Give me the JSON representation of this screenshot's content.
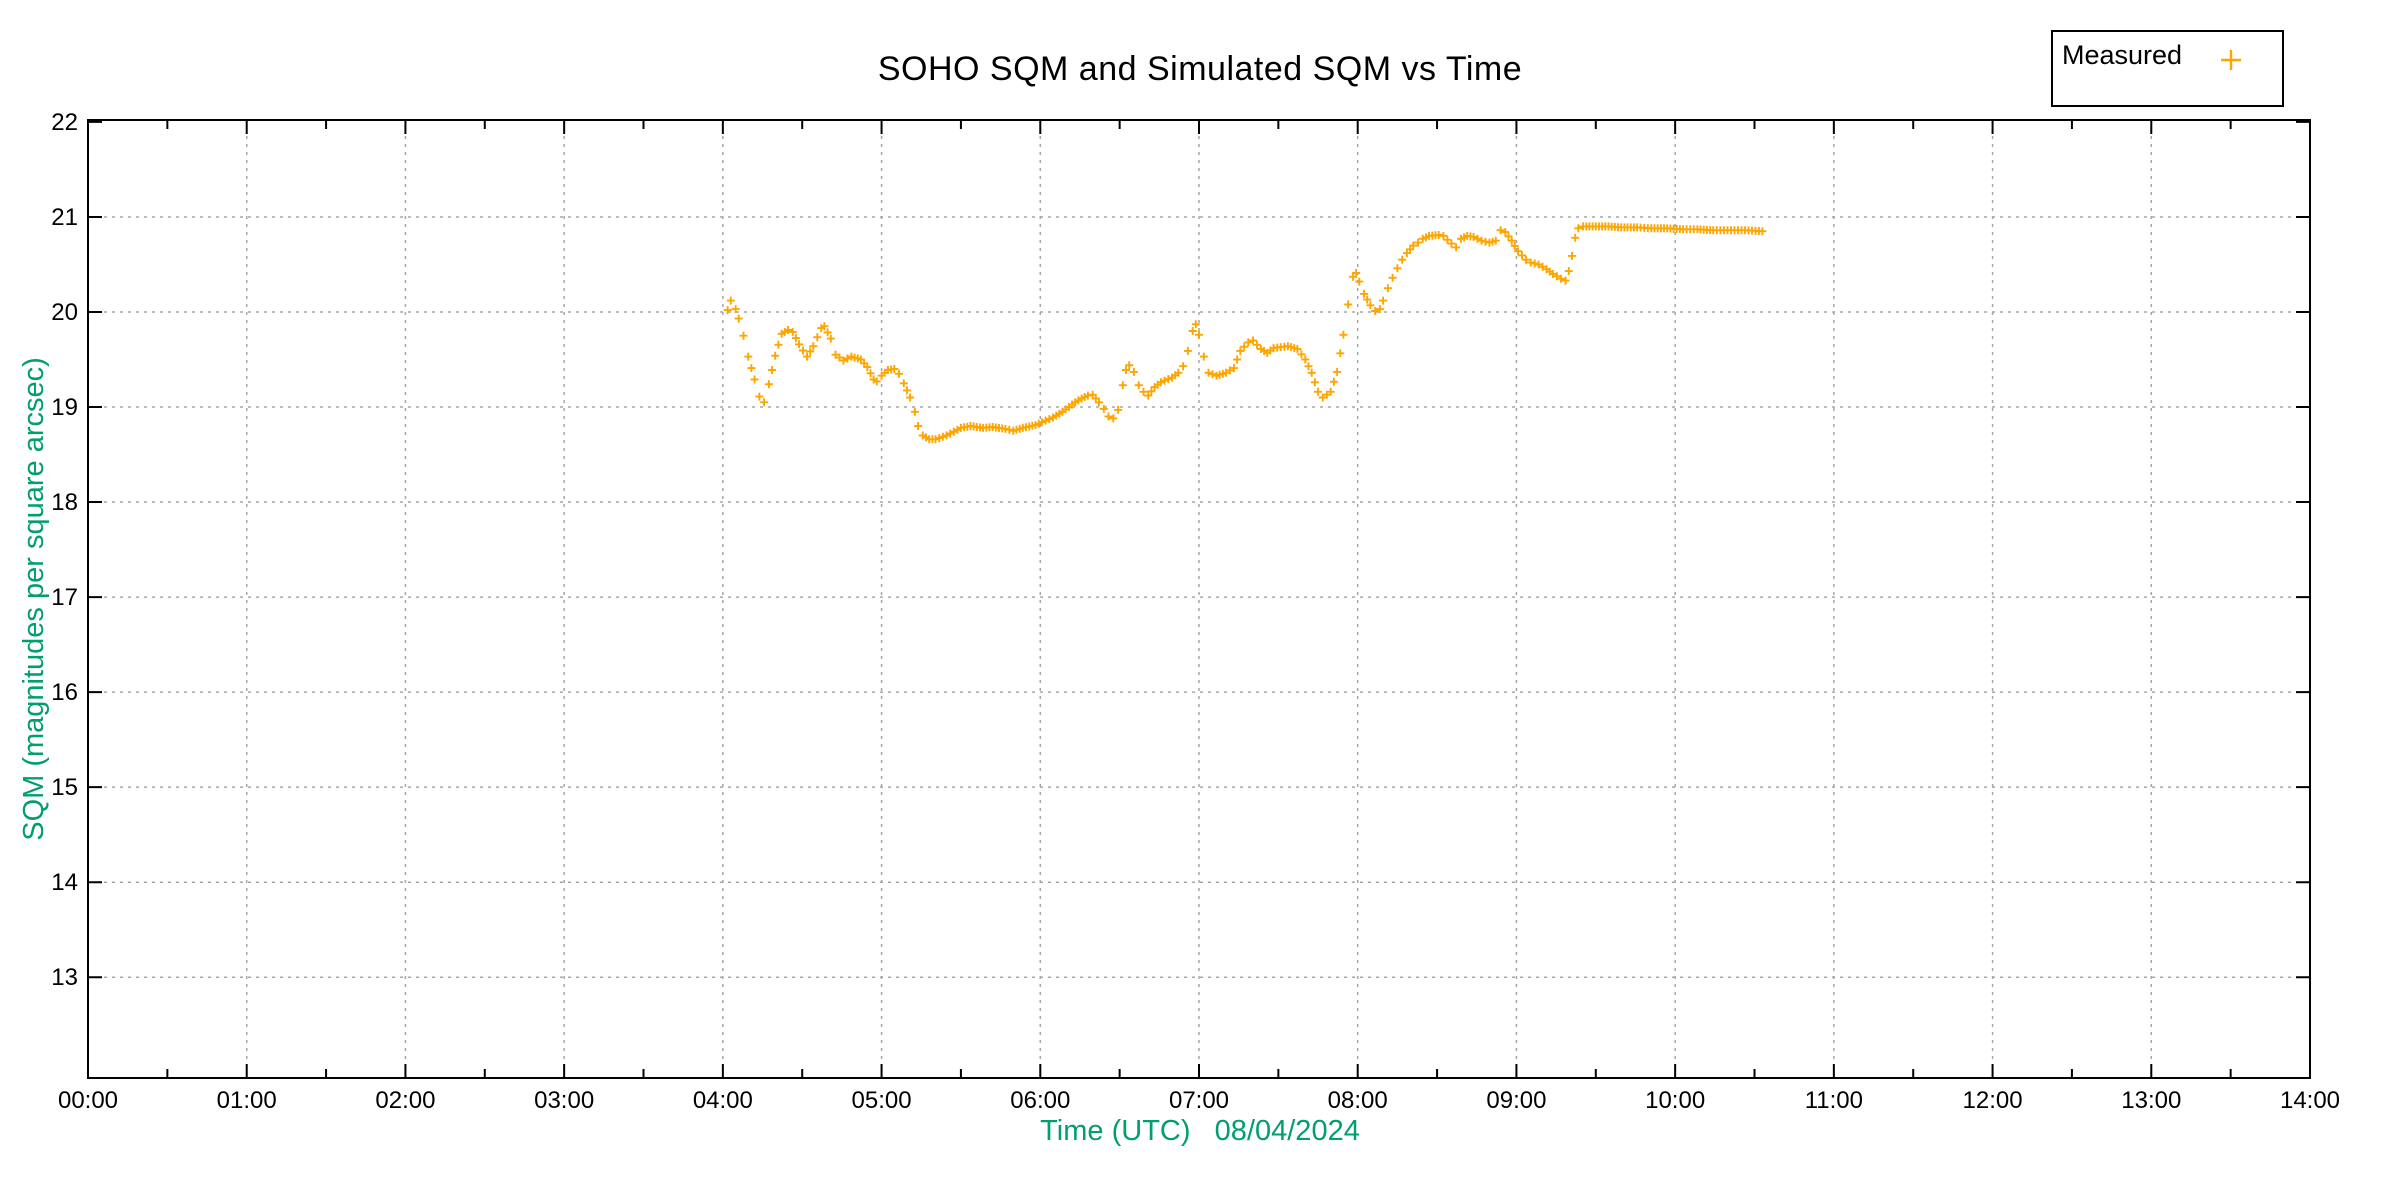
{
  "colors": {
    "marker_orange": "#FFA500",
    "label_green": "#019e6e",
    "grid_gray": "#a6a6a6",
    "axis_black": "#000000",
    "background": "#ffffff"
  },
  "legend": {
    "entries": [
      {
        "label": "Measured",
        "marker": "plus-marker",
        "color": "#FFA500"
      }
    ]
  },
  "chart_data": {
    "type": "scatter",
    "title": "SOHO SQM and Simulated SQM vs Time",
    "xlabel": "Time (UTC)   08/04/2024",
    "ylabel": "SQM (magnitudes per square arcsec)",
    "x_tick_labels": [
      "00:00",
      "01:00",
      "02:00",
      "03:00",
      "04:00",
      "05:00",
      "06:00",
      "07:00",
      "08:00",
      "09:00",
      "10:00",
      "11:00",
      "12:00",
      "13:00",
      "14:00"
    ],
    "x_tick_hours": [
      0,
      1,
      2,
      3,
      4,
      5,
      6,
      7,
      8,
      9,
      10,
      11,
      12,
      13,
      14
    ],
    "y_tick_values": [
      13,
      14,
      15,
      16,
      17,
      18,
      19,
      20,
      21,
      22
    ],
    "xlim_hours": [
      0,
      14
    ],
    "ylim": [
      11.94,
      22.02
    ],
    "grid": true,
    "legend_position": "top-right-outside",
    "marker_style": "+",
    "series": [
      {
        "name": "Measured",
        "color": "#FFA500",
        "points": [
          [
            4.03,
            20.02
          ],
          [
            4.05,
            20.12
          ],
          [
            4.08,
            20.03
          ],
          [
            4.1,
            19.93
          ],
          [
            4.13,
            19.75
          ],
          [
            4.16,
            19.53
          ],
          [
            4.2,
            19.29
          ],
          [
            4.23,
            19.11
          ],
          [
            4.26,
            19.05
          ],
          [
            4.29,
            19.24
          ],
          [
            4.33,
            19.54
          ],
          [
            4.37,
            19.77
          ],
          [
            4.41,
            19.81
          ],
          [
            4.44,
            19.79
          ],
          [
            4.48,
            19.66
          ],
          [
            4.53,
            19.53
          ],
          [
            4.57,
            19.64
          ],
          [
            4.62,
            19.83
          ],
          [
            4.64,
            19.85
          ],
          [
            4.68,
            19.72
          ],
          [
            4.71,
            19.55
          ],
          [
            4.76,
            19.49
          ],
          [
            4.81,
            19.53
          ],
          [
            4.87,
            19.5
          ],
          [
            4.91,
            19.42
          ],
          [
            4.95,
            19.29
          ],
          [
            4.97,
            19.27
          ],
          [
            5.0,
            19.33
          ],
          [
            5.04,
            19.39
          ],
          [
            5.08,
            19.4
          ],
          [
            5.11,
            19.35
          ],
          [
            5.14,
            19.25
          ],
          [
            5.18,
            19.1
          ],
          [
            5.21,
            18.95
          ],
          [
            5.23,
            18.8
          ],
          [
            5.26,
            18.7
          ],
          [
            5.3,
            18.66
          ],
          [
            5.34,
            18.66
          ],
          [
            5.41,
            18.7
          ],
          [
            5.5,
            18.78
          ],
          [
            5.56,
            18.8
          ],
          [
            5.64,
            18.78
          ],
          [
            5.7,
            18.79
          ],
          [
            5.78,
            18.77
          ],
          [
            5.83,
            18.75
          ],
          [
            5.89,
            18.78
          ],
          [
            5.97,
            18.81
          ],
          [
            6.01,
            18.84
          ],
          [
            6.08,
            18.89
          ],
          [
            6.14,
            18.95
          ],
          [
            6.18,
            19.0
          ],
          [
            6.22,
            19.05
          ],
          [
            6.26,
            19.09
          ],
          [
            6.3,
            19.12
          ],
          [
            6.33,
            19.13
          ],
          [
            6.37,
            19.05
          ],
          [
            6.4,
            18.98
          ],
          [
            6.43,
            18.9
          ],
          [
            6.46,
            18.88
          ],
          [
            6.49,
            18.97
          ],
          [
            6.52,
            19.23
          ],
          [
            6.54,
            19.39
          ],
          [
            6.56,
            19.44
          ],
          [
            6.59,
            19.37
          ],
          [
            6.62,
            19.23
          ],
          [
            6.65,
            19.16
          ],
          [
            6.68,
            19.12
          ],
          [
            6.72,
            19.21
          ],
          [
            6.76,
            19.26
          ],
          [
            6.83,
            19.31
          ],
          [
            6.87,
            19.36
          ],
          [
            6.9,
            19.43
          ],
          [
            6.93,
            19.59
          ],
          [
            6.96,
            19.8
          ],
          [
            6.98,
            19.87
          ],
          [
            7.0,
            19.76
          ],
          [
            7.03,
            19.53
          ],
          [
            7.06,
            19.36
          ],
          [
            7.11,
            19.33
          ],
          [
            7.17,
            19.36
          ],
          [
            7.22,
            19.41
          ],
          [
            7.26,
            19.59
          ],
          [
            7.31,
            19.68
          ],
          [
            7.34,
            19.7
          ],
          [
            7.39,
            19.61
          ],
          [
            7.43,
            19.57
          ],
          [
            7.47,
            19.62
          ],
          [
            7.56,
            19.64
          ],
          [
            7.62,
            19.61
          ],
          [
            7.67,
            19.5
          ],
          [
            7.71,
            19.36
          ],
          [
            7.75,
            19.16
          ],
          [
            7.78,
            19.1
          ],
          [
            7.83,
            19.16
          ],
          [
            7.87,
            19.37
          ],
          [
            7.91,
            19.76
          ],
          [
            7.94,
            20.08
          ],
          [
            7.97,
            20.37
          ],
          [
            7.99,
            20.41
          ],
          [
            8.01,
            20.32
          ],
          [
            8.04,
            20.19
          ],
          [
            8.08,
            20.07
          ],
          [
            8.11,
            20.01
          ],
          [
            8.14,
            20.03
          ],
          [
            8.16,
            20.12
          ],
          [
            8.19,
            20.25
          ],
          [
            8.22,
            20.36
          ],
          [
            8.25,
            20.46
          ],
          [
            8.28,
            20.55
          ],
          [
            8.31,
            20.62
          ],
          [
            8.35,
            20.7
          ],
          [
            8.38,
            20.73
          ],
          [
            8.41,
            20.77
          ],
          [
            8.45,
            20.8
          ],
          [
            8.51,
            20.81
          ],
          [
            8.54,
            20.8
          ],
          [
            8.59,
            20.72
          ],
          [
            8.62,
            20.68
          ],
          [
            8.65,
            20.77
          ],
          [
            8.69,
            20.8
          ],
          [
            8.73,
            20.79
          ],
          [
            8.78,
            20.75
          ],
          [
            8.83,
            20.73
          ],
          [
            8.87,
            20.75
          ],
          [
            8.9,
            20.86
          ],
          [
            8.93,
            20.84
          ],
          [
            8.97,
            20.75
          ],
          [
            9.01,
            20.64
          ],
          [
            9.06,
            20.55
          ],
          [
            9.09,
            20.52
          ],
          [
            9.14,
            20.5
          ],
          [
            9.19,
            20.45
          ],
          [
            9.23,
            20.4
          ],
          [
            9.28,
            20.35
          ],
          [
            9.31,
            20.33
          ],
          [
            9.33,
            20.43
          ],
          [
            9.35,
            20.59
          ],
          [
            9.37,
            20.78
          ],
          [
            9.39,
            20.88
          ],
          [
            9.42,
            20.9
          ],
          [
            9.5,
            20.9
          ],
          [
            9.58,
            20.9
          ],
          [
            9.66,
            20.89
          ],
          [
            9.76,
            20.89
          ],
          [
            9.85,
            20.88
          ],
          [
            9.95,
            20.88
          ],
          [
            10.05,
            20.87
          ],
          [
            10.14,
            20.87
          ],
          [
            10.24,
            20.86
          ],
          [
            10.33,
            20.86
          ],
          [
            10.44,
            20.86
          ],
          [
            10.55,
            20.85
          ]
        ]
      }
    ]
  }
}
